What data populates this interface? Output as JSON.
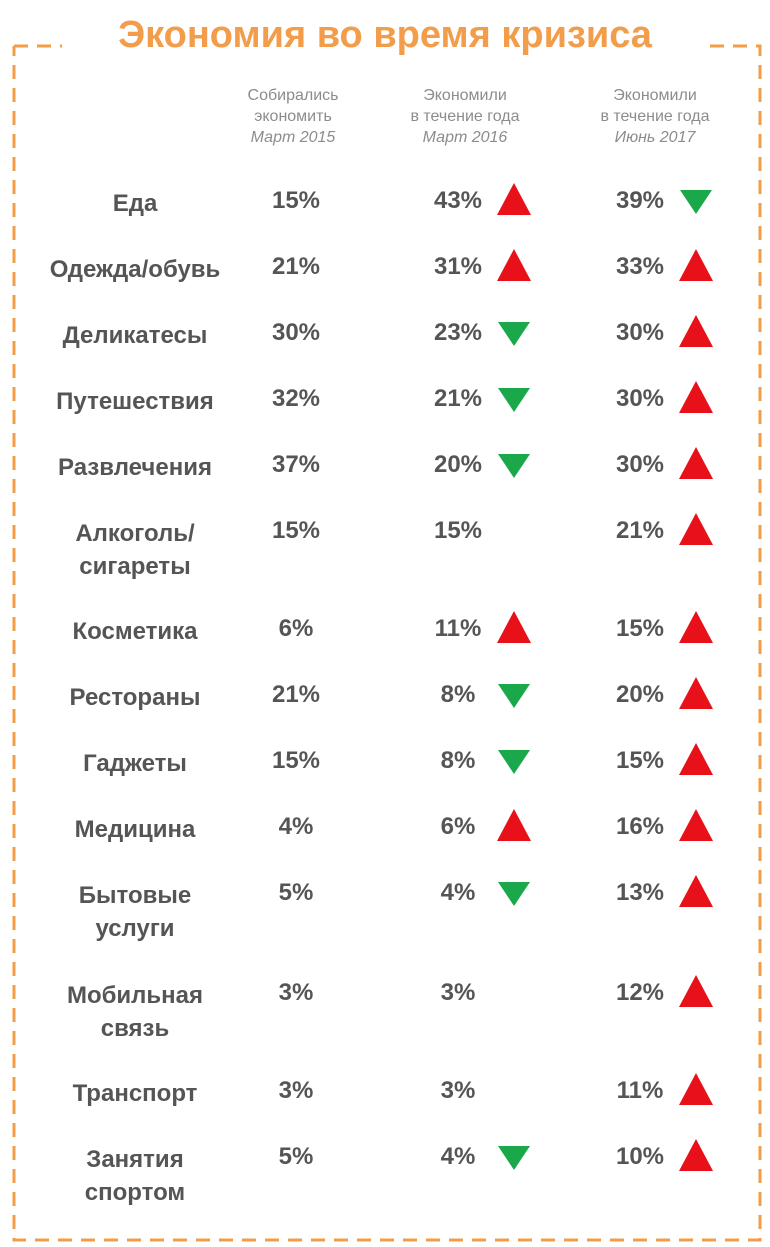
{
  "chart_data": {
    "type": "table",
    "title": "Экономия во время кризиса",
    "columns": [
      {
        "lines": [
          "Собирались",
          "экономить"
        ],
        "date": "Март 2015"
      },
      {
        "lines": [
          "Экономили",
          "в течение года"
        ],
        "date": "Март 2016"
      },
      {
        "lines": [
          "Экономили",
          "в течение года"
        ],
        "date": "Июнь 2017"
      }
    ],
    "rows": [
      {
        "category": [
          "Еда"
        ],
        "values": [
          "15%",
          "43%",
          "39%"
        ],
        "trend": [
          "",
          "up",
          "down"
        ]
      },
      {
        "category": [
          "Одежда/обувь"
        ],
        "values": [
          "21%",
          "31%",
          "33%"
        ],
        "trend": [
          "",
          "up",
          "up"
        ]
      },
      {
        "category": [
          "Деликатесы"
        ],
        "values": [
          "30%",
          "23%",
          "30%"
        ],
        "trend": [
          "",
          "down",
          "up"
        ]
      },
      {
        "category": [
          "Путешествия"
        ],
        "values": [
          "32%",
          "21%",
          "30%"
        ],
        "trend": [
          "",
          "down",
          "up"
        ]
      },
      {
        "category": [
          "Развлечения"
        ],
        "values": [
          "37%",
          "20%",
          "30%"
        ],
        "trend": [
          "",
          "down",
          "up"
        ]
      },
      {
        "category": [
          "Алкоголь/",
          "сигареты"
        ],
        "values": [
          "15%",
          "15%",
          "21%"
        ],
        "trend": [
          "",
          "",
          "up"
        ]
      },
      {
        "category": [
          "Косметика"
        ],
        "values": [
          "6%",
          "11%",
          "15%"
        ],
        "trend": [
          "",
          "up",
          "up"
        ]
      },
      {
        "category": [
          "Рестораны"
        ],
        "values": [
          "21%",
          "8%",
          "20%"
        ],
        "trend": [
          "",
          "down",
          "up"
        ]
      },
      {
        "category": [
          "Гаджеты"
        ],
        "values": [
          "15%",
          "8%",
          "15%"
        ],
        "trend": [
          "",
          "down",
          "up"
        ]
      },
      {
        "category": [
          "Медицина"
        ],
        "values": [
          "4%",
          "6%",
          "16%"
        ],
        "trend": [
          "",
          "up",
          "up"
        ]
      },
      {
        "category": [
          "Бытовые",
          "услуги"
        ],
        "values": [
          "5%",
          "4%",
          "13%"
        ],
        "trend": [
          "",
          "down",
          "up"
        ]
      },
      {
        "category": [
          "Мобильная",
          "связь"
        ],
        "values": [
          "3%",
          "3%",
          "12%"
        ],
        "trend": [
          "",
          "",
          "up"
        ]
      },
      {
        "category": [
          "Транспорт"
        ],
        "values": [
          "3%",
          "3%",
          "11%"
        ],
        "trend": [
          "",
          "",
          "up"
        ]
      },
      {
        "category": [
          "Занятия",
          "спортом"
        ],
        "values": [
          "5%",
          "4%",
          "10%"
        ],
        "trend": [
          "",
          "down",
          "up"
        ]
      }
    ]
  },
  "colors": {
    "accent": "#F39C4A",
    "up": "#E8111A",
    "down": "#1AA84B",
    "text": "#555555",
    "header": "#8c8c8c"
  }
}
